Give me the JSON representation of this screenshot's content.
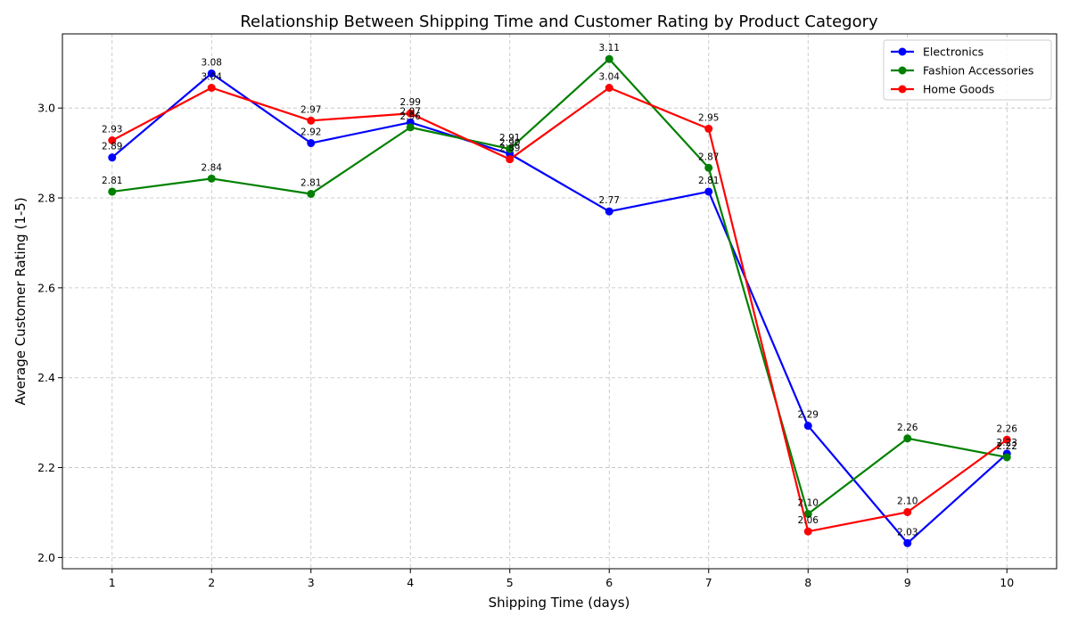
{
  "chart_data": {
    "type": "line",
    "title": "Relationship Between Shipping Time and Customer Rating by Product Category",
    "xlabel": "Shipping Time (days)",
    "ylabel": "Average Customer Rating (1-5)",
    "x": [
      1,
      2,
      3,
      4,
      5,
      6,
      7,
      8,
      9,
      10
    ],
    "xticks": [
      "1",
      "2",
      "3",
      "4",
      "5",
      "6",
      "7",
      "8",
      "9",
      "10"
    ],
    "xlim": [
      0.5,
      10.5
    ],
    "ylim": [
      1.975,
      3.165
    ],
    "yticks": [
      "2.0",
      "2.2",
      "2.4",
      "2.6",
      "2.8",
      "3.0"
    ],
    "ytick_values": [
      2.0,
      2.2,
      2.4,
      2.6,
      2.8,
      3.0
    ],
    "grid": true,
    "legend_position": "top-right",
    "series": [
      {
        "name": "Electronics",
        "color": "#0000ff",
        "values": [
          2.89,
          3.077,
          2.922,
          2.968,
          2.898,
          2.77,
          2.814,
          2.293,
          2.032,
          2.231
        ],
        "labels": [
          "2.89",
          "3.08",
          "2.92",
          "2.97",
          "2.90",
          "2.77",
          "2.81",
          "2.29",
          "2.03",
          "2.23"
        ]
      },
      {
        "name": "Fashion Accessories",
        "color": "#008000",
        "values": [
          2.814,
          2.843,
          2.809,
          2.957,
          2.909,
          3.109,
          2.867,
          2.097,
          2.265,
          2.223
        ],
        "labels": [
          "2.81",
          "2.84",
          "2.81",
          "2.96",
          "2.91",
          "3.11",
          "2.87",
          "2.10",
          "2.26",
          "2.22"
        ]
      },
      {
        "name": "Home Goods",
        "color": "#ff0000",
        "values": [
          2.928,
          3.045,
          2.972,
          2.988,
          2.886,
          3.045,
          2.954,
          2.058,
          2.101,
          2.262
        ],
        "labels": [
          "2.93",
          "3.04",
          "2.97",
          "2.99",
          "2.89",
          "3.04",
          "2.95",
          "2.06",
          "2.10",
          "2.26"
        ]
      }
    ]
  }
}
